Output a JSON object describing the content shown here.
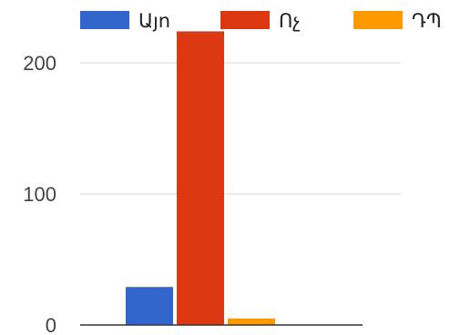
{
  "chart_data": {
    "type": "bar",
    "title": "",
    "xlabel": "",
    "ylabel": "",
    "ylim": [
      0,
      225
    ],
    "yticks": [
      0,
      100,
      200
    ],
    "grid": true,
    "legend_position": "top",
    "categories": [
      ""
    ],
    "series": [
      {
        "name": "Այո",
        "color": "#3366cc",
        "values": [
          29
        ]
      },
      {
        "name": "Ոչ",
        "color": "#dc3912",
        "values": [
          224
        ]
      },
      {
        "name": "ԴՊ",
        "color": "#ff9900",
        "values": [
          5
        ]
      }
    ]
  }
}
